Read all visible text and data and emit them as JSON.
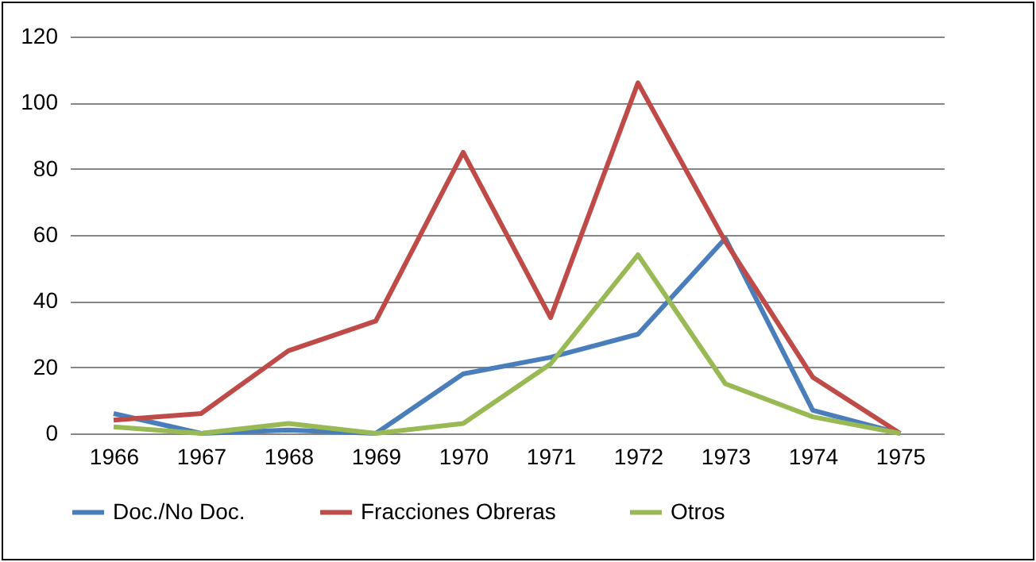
{
  "chart_data": {
    "type": "line",
    "categories": [
      "1966",
      "1967",
      "1968",
      "1969",
      "1970",
      "1971",
      "1972",
      "1973",
      "1974",
      "1975"
    ],
    "series": [
      {
        "name": "Doc./No Doc.",
        "color": "#4a7ebb",
        "values": [
          6,
          0,
          1,
          0,
          18,
          23,
          30,
          59,
          7,
          0
        ]
      },
      {
        "name": "Fracciones Obreras",
        "color": "#be4b48",
        "values": [
          4,
          6,
          25,
          34,
          85,
          35,
          106,
          58,
          17,
          0
        ]
      },
      {
        "name": "Otros",
        "color": "#98b954",
        "values": [
          2,
          0,
          3,
          0,
          3,
          21,
          54,
          15,
          5,
          0
        ]
      }
    ],
    "ylim": [
      0,
      120
    ],
    "yticks": [
      0,
      20,
      40,
      60,
      80,
      100,
      120
    ],
    "grid": "y",
    "legend": "bottom",
    "marker": "none",
    "line_style": "solid"
  }
}
